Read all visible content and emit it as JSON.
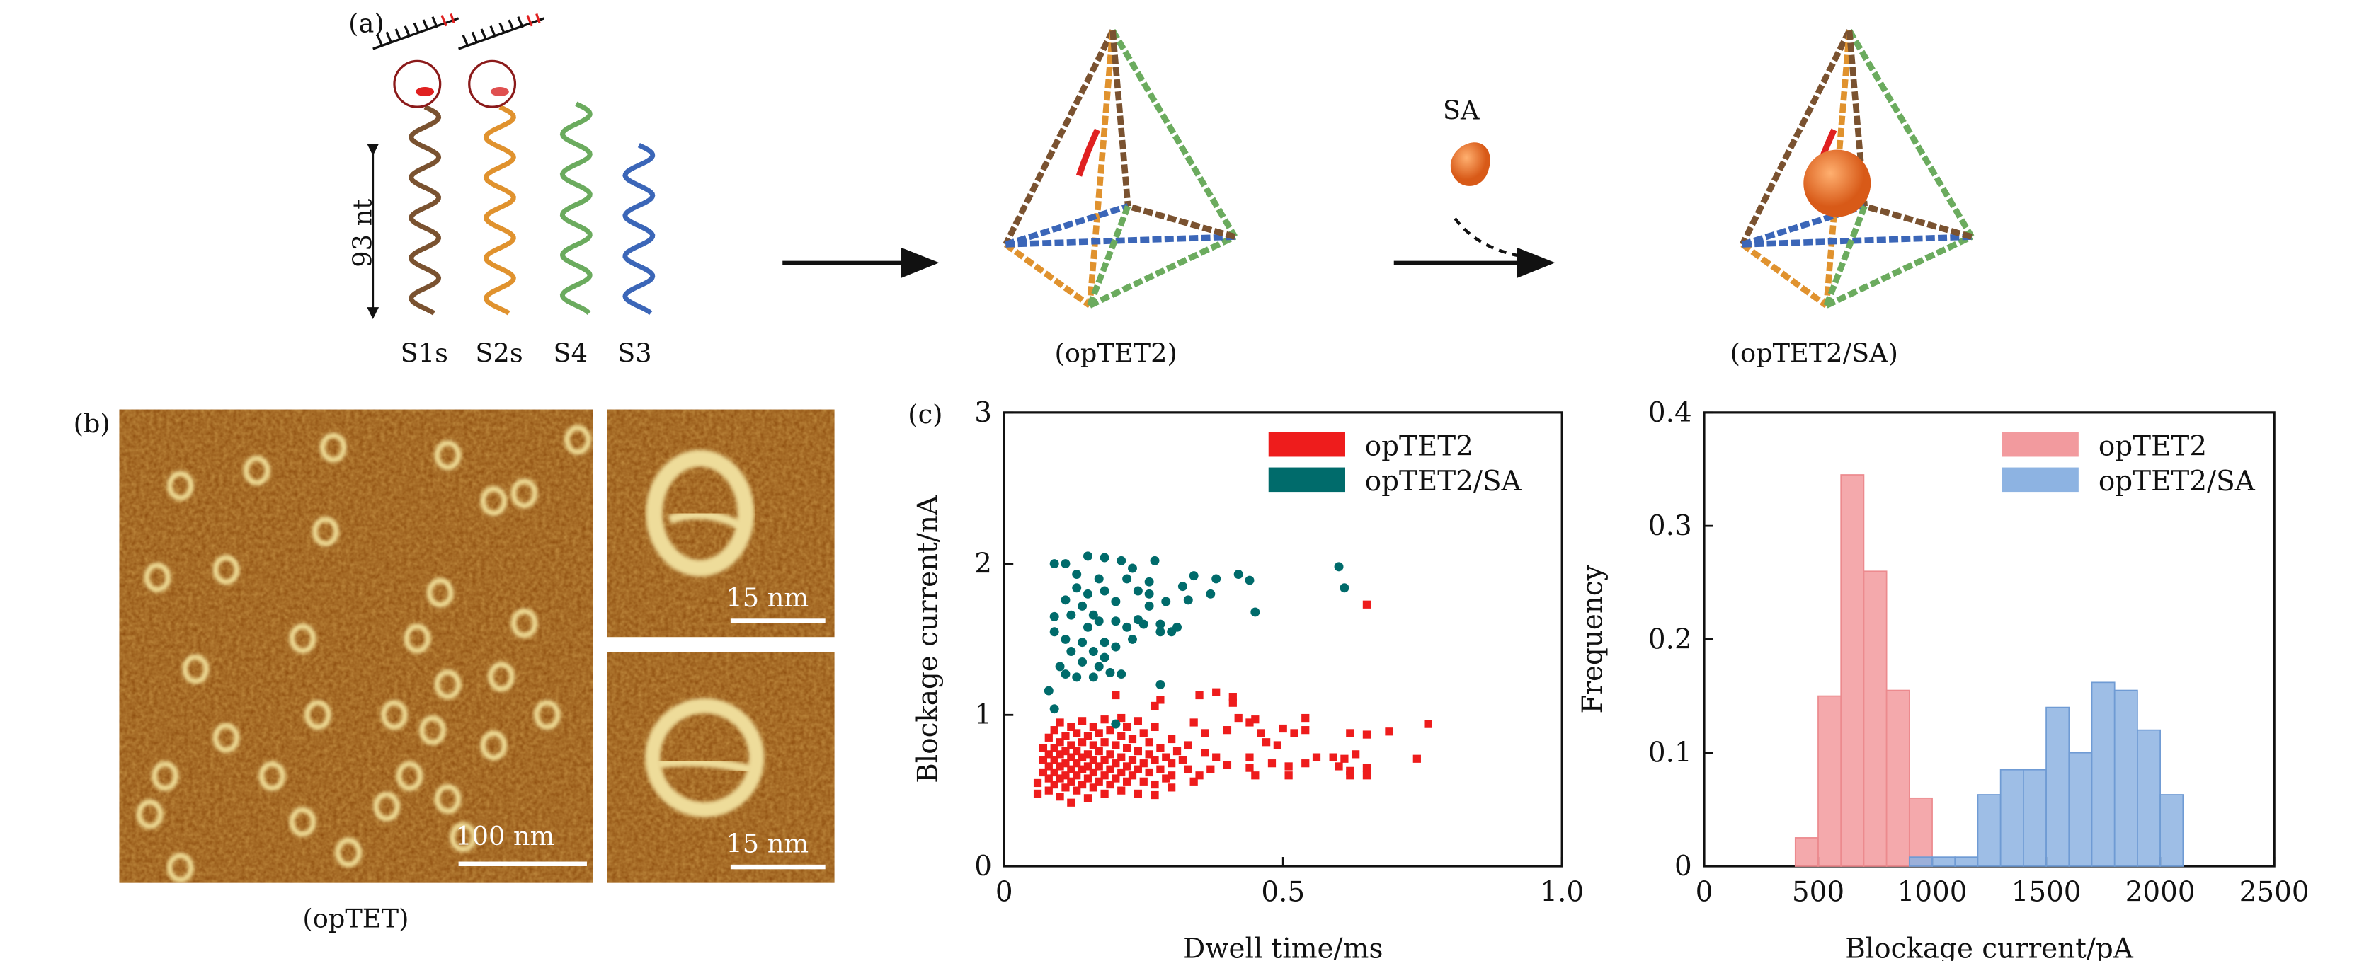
{
  "panel_a": {
    "label": "(a)",
    "length_label": "93 nt",
    "strand_labels": [
      "S1s",
      "S2s",
      "S4",
      "S3"
    ],
    "structure1_label": "(opTET2)",
    "sa_label": "SA",
    "structure2_label": "(opTET2/SA)",
    "colors": {
      "S1s": "#7a5230",
      "S2s": "#e0922e",
      "S4": "#6bab5e",
      "S3": "#3b66b8",
      "SA": "#e8742a",
      "tag": "#e02020"
    }
  },
  "panel_b": {
    "label": "(b)",
    "scale_main": "100 nm",
    "scale_inset1": "15 nm",
    "scale_inset2": "15 nm",
    "caption": "(opTET)"
  },
  "panel_c_label": "(c)",
  "chart_data": [
    {
      "type": "scatter",
      "xlabel": "Dwell time/ms",
      "ylabel": "Blockage current/nA",
      "xlim": [
        0,
        1.0
      ],
      "ylim": [
        0,
        3
      ],
      "xticks": [
        "0",
        "0.5",
        "1.0"
      ],
      "yticks": [
        "0",
        "1",
        "2",
        "3"
      ],
      "legend_position": "top-right",
      "series": [
        {
          "name": "opTET2",
          "color": "#ee1c1c",
          "marker": "square",
          "points": [
            [
              0.06,
              0.55
            ],
            [
              0.06,
              0.48
            ],
            [
              0.07,
              0.62
            ],
            [
              0.07,
              0.7
            ],
            [
              0.07,
              0.78
            ],
            [
              0.08,
              0.5
            ],
            [
              0.08,
              0.58
            ],
            [
              0.08,
              0.66
            ],
            [
              0.08,
              0.74
            ],
            [
              0.08,
              0.85
            ],
            [
              0.09,
              0.54
            ],
            [
              0.09,
              0.62
            ],
            [
              0.09,
              0.7
            ],
            [
              0.09,
              0.78
            ],
            [
              0.09,
              0.9
            ],
            [
              0.1,
              0.46
            ],
            [
              0.1,
              0.58
            ],
            [
              0.1,
              0.66
            ],
            [
              0.1,
              0.74
            ],
            [
              0.1,
              0.82
            ],
            [
              0.1,
              0.95
            ],
            [
              0.11,
              0.52
            ],
            [
              0.11,
              0.6
            ],
            [
              0.11,
              0.68
            ],
            [
              0.11,
              0.76
            ],
            [
              0.11,
              0.86
            ],
            [
              0.12,
              0.42
            ],
            [
              0.12,
              0.56
            ],
            [
              0.12,
              0.64
            ],
            [
              0.12,
              0.72
            ],
            [
              0.12,
              0.8
            ],
            [
              0.12,
              0.92
            ],
            [
              0.13,
              0.5
            ],
            [
              0.13,
              0.6
            ],
            [
              0.13,
              0.68
            ],
            [
              0.13,
              0.76
            ],
            [
              0.13,
              0.88
            ],
            [
              0.14,
              0.54
            ],
            [
              0.14,
              0.64
            ],
            [
              0.14,
              0.72
            ],
            [
              0.14,
              0.82
            ],
            [
              0.14,
              0.96
            ],
            [
              0.15,
              0.45
            ],
            [
              0.15,
              0.58
            ],
            [
              0.15,
              0.66
            ],
            [
              0.15,
              0.74
            ],
            [
              0.15,
              0.86
            ],
            [
              0.16,
              0.52
            ],
            [
              0.16,
              0.62
            ],
            [
              0.16,
              0.7
            ],
            [
              0.16,
              0.8
            ],
            [
              0.16,
              0.92
            ],
            [
              0.17,
              0.56
            ],
            [
              0.17,
              0.66
            ],
            [
              0.17,
              0.76
            ],
            [
              0.17,
              0.88
            ],
            [
              0.18,
              0.48
            ],
            [
              0.18,
              0.6
            ],
            [
              0.18,
              0.7
            ],
            [
              0.18,
              0.82
            ],
            [
              0.18,
              0.97
            ],
            [
              0.19,
              0.54
            ],
            [
              0.19,
              0.64
            ],
            [
              0.19,
              0.74
            ],
            [
              0.19,
              0.9
            ],
            [
              0.2,
              0.58
            ],
            [
              0.2,
              0.68
            ],
            [
              0.2,
              0.8
            ],
            [
              0.21,
              0.5
            ],
            [
              0.21,
              0.62
            ],
            [
              0.21,
              0.72
            ],
            [
              0.21,
              0.86
            ],
            [
              0.21,
              0.98
            ],
            [
              0.22,
              0.56
            ],
            [
              0.22,
              0.66
            ],
            [
              0.22,
              0.78
            ],
            [
              0.22,
              0.92
            ],
            [
              0.23,
              0.6
            ],
            [
              0.23,
              0.7
            ],
            [
              0.23,
              0.84
            ],
            [
              0.24,
              0.48
            ],
            [
              0.24,
              0.64
            ],
            [
              0.24,
              0.76
            ],
            [
              0.24,
              0.96
            ],
            [
              0.25,
              0.56
            ],
            [
              0.25,
              0.68
            ],
            [
              0.25,
              0.88
            ],
            [
              0.26,
              0.62
            ],
            [
              0.26,
              0.74
            ],
            [
              0.26,
              0.82
            ],
            [
              0.27,
              0.54
            ],
            [
              0.27,
              0.7
            ],
            [
              0.27,
              0.92
            ],
            [
              0.28,
              0.64
            ],
            [
              0.28,
              0.78
            ],
            [
              0.29,
              0.58
            ],
            [
              0.29,
              0.72
            ],
            [
              0.3,
              0.68
            ],
            [
              0.3,
              0.84
            ],
            [
              0.31,
              0.76
            ],
            [
              0.32,
              0.7
            ],
            [
              0.33,
              0.8
            ],
            [
              0.33,
              0.64
            ],
            [
              0.35,
              1.13
            ],
            [
              0.38,
              1.15
            ],
            [
              0.41,
              1.12
            ],
            [
              0.41,
              1.08
            ],
            [
              0.2,
              1.13
            ],
            [
              0.28,
              1.1
            ],
            [
              0.27,
              1.06
            ],
            [
              0.65,
              1.73
            ],
            [
              0.34,
              0.95
            ],
            [
              0.36,
              0.88
            ],
            [
              0.4,
              0.9
            ],
            [
              0.42,
              0.98
            ],
            [
              0.44,
              0.95
            ],
            [
              0.45,
              0.97
            ],
            [
              0.46,
              0.88
            ],
            [
              0.47,
              0.82
            ],
            [
              0.49,
              0.8
            ],
            [
              0.5,
              0.91
            ],
            [
              0.52,
              0.88
            ],
            [
              0.54,
              0.98
            ],
            [
              0.54,
              0.9
            ],
            [
              0.62,
              0.88
            ],
            [
              0.65,
              0.87
            ],
            [
              0.69,
              0.89
            ],
            [
              0.76,
              0.94
            ],
            [
              0.74,
              0.71
            ],
            [
              0.59,
              0.72
            ],
            [
              0.56,
              0.72
            ],
            [
              0.54,
              0.68
            ],
            [
              0.61,
              0.71
            ],
            [
              0.63,
              0.74
            ],
            [
              0.6,
              0.66
            ],
            [
              0.62,
              0.63
            ],
            [
              0.65,
              0.65
            ],
            [
              0.65,
              0.6
            ],
            [
              0.62,
              0.6
            ],
            [
              0.51,
              0.6
            ],
            [
              0.51,
              0.66
            ],
            [
              0.48,
              0.68
            ],
            [
              0.45,
              0.6
            ],
            [
              0.44,
              0.65
            ],
            [
              0.44,
              0.72
            ],
            [
              0.4,
              0.67
            ],
            [
              0.38,
              0.72
            ],
            [
              0.36,
              0.75
            ],
            [
              0.35,
              0.6
            ],
            [
              0.37,
              0.64
            ],
            [
              0.34,
              0.56
            ],
            [
              0.3,
              0.52
            ],
            [
              0.3,
              0.6
            ],
            [
              0.27,
              0.47
            ]
          ]
        },
        {
          "name": "opTET2/SA",
          "color": "#006b6b",
          "marker": "circle",
          "points": [
            [
              0.09,
              2.0
            ],
            [
              0.11,
              2.0
            ],
            [
              0.15,
              2.05
            ],
            [
              0.18,
              2.04
            ],
            [
              0.21,
              2.02
            ],
            [
              0.23,
              1.97
            ],
            [
              0.27,
              2.02
            ],
            [
              0.13,
              1.93
            ],
            [
              0.17,
              1.9
            ],
            [
              0.22,
              1.9
            ],
            [
              0.26,
              1.88
            ],
            [
              0.34,
              1.92
            ],
            [
              0.38,
              1.9
            ],
            [
              0.42,
              1.93
            ],
            [
              0.44,
              1.89
            ],
            [
              0.6,
              1.98
            ],
            [
              0.61,
              1.84
            ],
            [
              0.45,
              1.68
            ],
            [
              0.13,
              1.84
            ],
            [
              0.15,
              1.8
            ],
            [
              0.18,
              1.82
            ],
            [
              0.2,
              1.75
            ],
            [
              0.24,
              1.82
            ],
            [
              0.26,
              1.8
            ],
            [
              0.29,
              1.75
            ],
            [
              0.32,
              1.85
            ],
            [
              0.33,
              1.76
            ],
            [
              0.37,
              1.8
            ],
            [
              0.11,
              1.76
            ],
            [
              0.14,
              1.72
            ],
            [
              0.16,
              1.66
            ],
            [
              0.09,
              1.65
            ],
            [
              0.12,
              1.66
            ],
            [
              0.17,
              1.62
            ],
            [
              0.22,
              1.58
            ],
            [
              0.24,
              1.63
            ],
            [
              0.25,
              1.6
            ],
            [
              0.28,
              1.6
            ],
            [
              0.3,
              1.55
            ],
            [
              0.31,
              1.58
            ],
            [
              0.09,
              1.55
            ],
            [
              0.11,
              1.5
            ],
            [
              0.14,
              1.48
            ],
            [
              0.16,
              1.42
            ],
            [
              0.18,
              1.48
            ],
            [
              0.2,
              1.45
            ],
            [
              0.23,
              1.5
            ],
            [
              0.12,
              1.42
            ],
            [
              0.14,
              1.35
            ],
            [
              0.17,
              1.32
            ],
            [
              0.1,
              1.32
            ],
            [
              0.11,
              1.27
            ],
            [
              0.13,
              1.25
            ],
            [
              0.16,
              1.25
            ],
            [
              0.19,
              1.28
            ],
            [
              0.21,
              1.27
            ],
            [
              0.28,
              1.2
            ],
            [
              0.08,
              1.16
            ],
            [
              0.09,
              1.04
            ],
            [
              0.2,
              0.94
            ],
            [
              0.28,
              1.55
            ],
            [
              0.2,
              1.62
            ],
            [
              0.26,
              1.72
            ],
            [
              0.15,
              1.58
            ],
            [
              0.18,
              1.38
            ]
          ]
        }
      ]
    },
    {
      "type": "bar",
      "subtype": "histogram",
      "xlabel": "Blockage current/pA",
      "ylabel": "Frequency",
      "xlim": [
        0,
        2500
      ],
      "ylim": [
        0,
        0.4
      ],
      "xticks": [
        "0",
        "500",
        "1000",
        "1500",
        "2000",
        "2500"
      ],
      "yticks": [
        "0",
        "0.1",
        "0.2",
        "0.3",
        "0.4"
      ],
      "legend_position": "top-right",
      "series": [
        {
          "name": "opTET2",
          "color": "#f29a9e",
          "bins": [
            [
              400,
              500,
              0.025
            ],
            [
              500,
              600,
              0.15
            ],
            [
              600,
              700,
              0.345
            ],
            [
              700,
              800,
              0.26
            ],
            [
              800,
              900,
              0.155
            ],
            [
              900,
              1000,
              0.06
            ]
          ]
        },
        {
          "name": "opTET2/SA",
          "color": "#8db3e2",
          "bins": [
            [
              900,
              1000,
              0.008
            ],
            [
              1000,
              1100,
              0.008
            ],
            [
              1100,
              1200,
              0.008
            ],
            [
              1200,
              1300,
              0.063
            ],
            [
              1300,
              1400,
              0.085
            ],
            [
              1400,
              1500,
              0.085
            ],
            [
              1500,
              1600,
              0.14
            ],
            [
              1600,
              1700,
              0.1
            ],
            [
              1700,
              1800,
              0.162
            ],
            [
              1800,
              1900,
              0.155
            ],
            [
              1900,
              2000,
              0.12
            ],
            [
              2000,
              2100,
              0.063
            ]
          ]
        }
      ]
    }
  ]
}
